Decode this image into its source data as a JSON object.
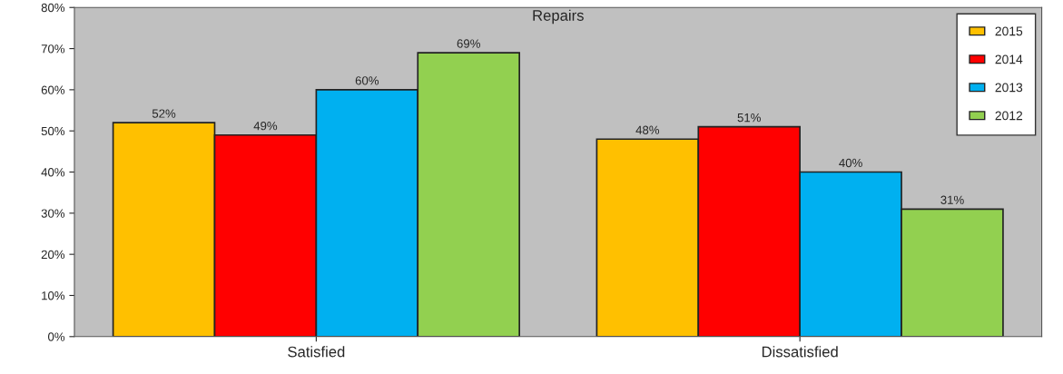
{
  "chart_data": {
    "type": "bar",
    "title": "Repairs",
    "categories": [
      "Satisfied",
      "Dissatisfied"
    ],
    "series": [
      {
        "name": "2015",
        "color": "#ffc000",
        "values": [
          52,
          48
        ],
        "value_labels": [
          "52%",
          "48%"
        ]
      },
      {
        "name": "2014",
        "color": "#ff0000",
        "values": [
          49,
          51
        ],
        "value_labels": [
          "49%",
          "51%"
        ]
      },
      {
        "name": "2013",
        "color": "#00b0f0",
        "values": [
          60,
          40
        ],
        "value_labels": [
          "60%",
          "40%"
        ]
      },
      {
        "name": "2012",
        "color": "#92d050",
        "values": [
          69,
          31
        ],
        "value_labels": [
          "69%",
          "31%"
        ]
      }
    ],
    "ylim": [
      0,
      80
    ],
    "yticks": [
      {
        "value": 0,
        "label": "0%"
      },
      {
        "value": 10,
        "label": "10%"
      },
      {
        "value": 20,
        "label": "20%"
      },
      {
        "value": 30,
        "label": "30%"
      },
      {
        "value": 40,
        "label": "40%"
      },
      {
        "value": 50,
        "label": "50%"
      },
      {
        "value": 60,
        "label": "60%"
      },
      {
        "value": 70,
        "label": "70%"
      },
      {
        "value": 80,
        "label": "80%"
      }
    ],
    "grid": false,
    "legend": "top right"
  }
}
